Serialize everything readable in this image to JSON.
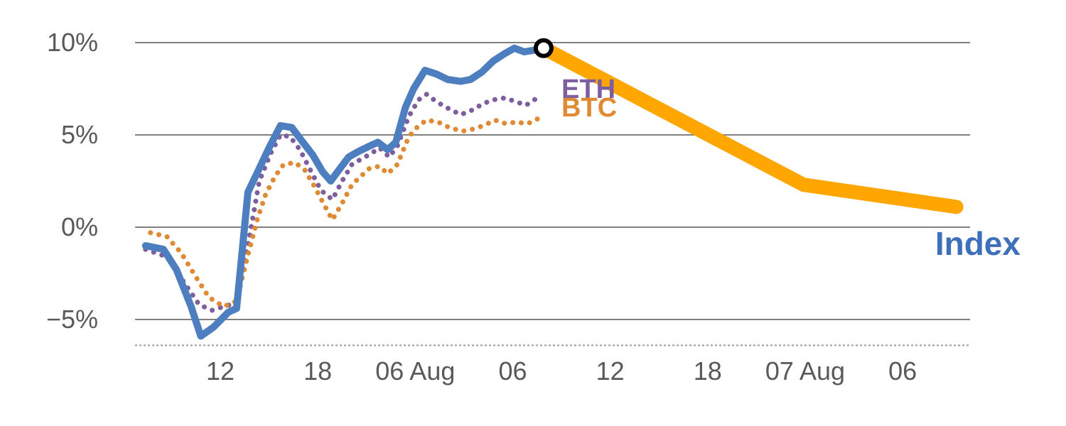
{
  "chart_data": {
    "type": "line",
    "title": "",
    "xlabel": "",
    "ylabel": "",
    "x_unit": "hours since first '12' tick (12:00)",
    "y_unit": "percent change",
    "ylim": [
      -7,
      11.5
    ],
    "grid": "horizontal",
    "baseline_pct": -6.4,
    "colors": {
      "index_blue": "#4d7ebf",
      "eth_purple": "#7d5fa0",
      "btc_orange": "#e08a33",
      "forecast_orange": "#ffa600",
      "gridline_gray": "#808080",
      "tick_text_gray": "#595959"
    },
    "y_ticks": [
      {
        "pct": 10,
        "label": "10%"
      },
      {
        "pct": 5,
        "label": "5%"
      },
      {
        "pct": 0,
        "label": "0%"
      },
      {
        "pct": -5,
        "label": "−5%"
      }
    ],
    "x_ticks": [
      {
        "t": 0,
        "label": "12"
      },
      {
        "t": 6,
        "label": "18"
      },
      {
        "t": 12,
        "label": "06 Aug"
      },
      {
        "t": 18,
        "label": "06"
      },
      {
        "t": 24,
        "label": "12"
      },
      {
        "t": 30,
        "label": "18"
      },
      {
        "t": 36,
        "label": "07 Aug"
      },
      {
        "t": 42,
        "label": "06"
      }
    ],
    "series": [
      {
        "name": "Index forecast",
        "color": "#ffa600",
        "style": "solid",
        "width": 20,
        "points": [
          [
            19.9,
            9.7
          ],
          [
            35.9,
            2.3
          ],
          [
            45.3,
            1.1
          ]
        ]
      },
      {
        "name": "ETH",
        "color": "#7d5fa0",
        "style": "dotted",
        "width": 7,
        "points": [
          [
            -4.6,
            -1.2
          ],
          [
            -3.3,
            -1.6
          ],
          [
            -2.3,
            -2.9
          ],
          [
            -1.3,
            -4.2
          ],
          [
            -0.5,
            -4.5
          ],
          [
            0.2,
            -4.3
          ],
          [
            1.0,
            -4.1
          ],
          [
            1.8,
            -0.5
          ],
          [
            2.4,
            2.5
          ],
          [
            3.1,
            4.0
          ],
          [
            3.7,
            5.0
          ],
          [
            4.3,
            4.9
          ],
          [
            4.9,
            4.2
          ],
          [
            5.6,
            3.0
          ],
          [
            6.2,
            2.0
          ],
          [
            6.9,
            1.5
          ],
          [
            7.5,
            2.5
          ],
          [
            8.1,
            3.4
          ],
          [
            8.7,
            3.7
          ],
          [
            9.3,
            4.0
          ],
          [
            9.8,
            4.3
          ],
          [
            10.4,
            3.8
          ],
          [
            10.9,
            4.4
          ],
          [
            11.6,
            6.0
          ],
          [
            12.2,
            6.9
          ],
          [
            12.7,
            7.2
          ],
          [
            13.3,
            6.8
          ],
          [
            14.1,
            6.4
          ],
          [
            14.8,
            6.1
          ],
          [
            15.4,
            6.3
          ],
          [
            16.2,
            6.7
          ],
          [
            16.8,
            6.9
          ],
          [
            17.5,
            7.0
          ],
          [
            18.2,
            6.8
          ],
          [
            18.8,
            6.6
          ],
          [
            19.5,
            7.0
          ]
        ]
      },
      {
        "name": "BTC",
        "color": "#e08a33",
        "style": "dotted",
        "width": 7,
        "points": [
          [
            -4.3,
            -0.3
          ],
          [
            -3.3,
            -0.5
          ],
          [
            -2.4,
            -1.4
          ],
          [
            -1.5,
            -2.7
          ],
          [
            -0.7,
            -3.8
          ],
          [
            0.2,
            -4.3
          ],
          [
            1.0,
            -4.0
          ],
          [
            1.7,
            -1.5
          ],
          [
            2.3,
            0.5
          ],
          [
            2.8,
            1.8
          ],
          [
            3.4,
            2.8
          ],
          [
            3.9,
            3.4
          ],
          [
            4.6,
            3.5
          ],
          [
            5.2,
            3.1
          ],
          [
            5.8,
            2.2
          ],
          [
            6.4,
            1.2
          ],
          [
            6.9,
            0.4
          ],
          [
            7.5,
            1.3
          ],
          [
            8.1,
            2.3
          ],
          [
            8.7,
            2.8
          ],
          [
            9.2,
            3.2
          ],
          [
            9.8,
            3.3
          ],
          [
            10.3,
            2.9
          ],
          [
            10.9,
            3.4
          ],
          [
            11.6,
            4.9
          ],
          [
            12.2,
            5.5
          ],
          [
            12.7,
            5.8
          ],
          [
            13.4,
            5.7
          ],
          [
            14.1,
            5.4
          ],
          [
            14.9,
            5.2
          ],
          [
            15.5,
            5.3
          ],
          [
            16.2,
            5.5
          ],
          [
            16.9,
            5.8
          ],
          [
            17.6,
            5.6
          ],
          [
            18.2,
            5.7
          ],
          [
            18.9,
            5.6
          ],
          [
            19.6,
            5.9
          ]
        ]
      },
      {
        "name": "Index",
        "color": "#4d7ebf",
        "style": "solid",
        "width": 10,
        "points": [
          [
            -4.6,
            -1.0
          ],
          [
            -3.5,
            -1.2
          ],
          [
            -2.7,
            -2.3
          ],
          [
            -1.8,
            -4.3
          ],
          [
            -1.2,
            -5.9
          ],
          [
            -0.4,
            -5.4
          ],
          [
            0.5,
            -4.6
          ],
          [
            1.0,
            -4.4
          ],
          [
            1.7,
            1.9
          ],
          [
            2.3,
            3.0
          ],
          [
            3.0,
            4.3
          ],
          [
            3.7,
            5.5
          ],
          [
            4.4,
            5.4
          ],
          [
            5.0,
            4.7
          ],
          [
            5.7,
            3.9
          ],
          [
            6.3,
            3.0
          ],
          [
            6.8,
            2.5
          ],
          [
            7.3,
            3.1
          ],
          [
            7.9,
            3.8
          ],
          [
            8.5,
            4.1
          ],
          [
            9.2,
            4.4
          ],
          [
            9.7,
            4.6
          ],
          [
            10.3,
            4.2
          ],
          [
            10.8,
            4.6
          ],
          [
            11.4,
            6.5
          ],
          [
            11.9,
            7.5
          ],
          [
            12.6,
            8.5
          ],
          [
            13.3,
            8.3
          ],
          [
            14.0,
            8.0
          ],
          [
            14.8,
            7.9
          ],
          [
            15.4,
            8.0
          ],
          [
            16.1,
            8.4
          ],
          [
            16.8,
            9.0
          ],
          [
            17.5,
            9.4
          ],
          [
            18.1,
            9.7
          ],
          [
            18.7,
            9.5
          ],
          [
            19.4,
            9.6
          ],
          [
            19.9,
            9.7
          ]
        ]
      }
    ],
    "marker": {
      "t": 19.9,
      "pct": 9.7,
      "series": "Index"
    },
    "labels": [
      {
        "text": "ETH",
        "t": 21.0,
        "pct": 7.0,
        "color": "#7d5fa0",
        "size": 38,
        "weight": "bold"
      },
      {
        "text": "BTC",
        "t": 21.0,
        "pct": 6.0,
        "color": "#e08a33",
        "size": 38,
        "weight": "bold"
      },
      {
        "text": "Index",
        "t": 44.0,
        "pct": -1.5,
        "color": "#3d6fba",
        "size": 46,
        "weight": "bold"
      }
    ],
    "legend_position": "inline-labels"
  }
}
